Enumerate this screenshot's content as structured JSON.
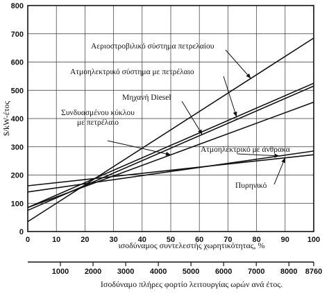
{
  "chart_data": {
    "type": "line",
    "ylabel": "$/kW-έτος",
    "xlabel": "ισοδύναμος συντελεστής χωρητικότητας, %",
    "x2label": "Ισοδύναμο πλήρες φορτίο λειτουργίας ωρών ανά έτος.",
    "xlim": [
      0,
      100
    ],
    "ylim": [
      0,
      800
    ],
    "x_ticks": [
      0,
      10,
      20,
      30,
      40,
      50,
      60,
      70,
      80,
      90,
      100
    ],
    "y_ticks": [
      0,
      100,
      200,
      300,
      400,
      500,
      600,
      700,
      800
    ],
    "x2_ticks": [
      1000,
      2000,
      3000,
      4000,
      5000,
      6000,
      7000,
      8000,
      8760
    ],
    "x2_max": 8760,
    "grid": true,
    "series": [
      {
        "name": "Αεριοστροβιλικό σύστημα πετρελαίου",
        "x": [
          0,
          100
        ],
        "y": [
          35,
          685
        ]
      },
      {
        "name": "Ατμοηλεκτρικό σύστημα με πετρέλαιο",
        "x": [
          0,
          100
        ],
        "y": [
          85,
          525
        ]
      },
      {
        "name": "Μηχανή Diesel",
        "x": [
          0,
          100
        ],
        "y": [
          75,
          515
        ]
      },
      {
        "name": "Συνδυασμένου κύκλου\nμε πετρέλαιο",
        "x": [
          0,
          100
        ],
        "y": [
          85,
          458
        ]
      },
      {
        "name": "Ατμοηλεκτρικό με άνθρακα",
        "x": [
          0,
          100
        ],
        "y": [
          140,
          285
        ]
      },
      {
        "name": "Πυρηνικό",
        "x": [
          0,
          100
        ],
        "y": [
          162,
          272
        ]
      }
    ]
  }
}
